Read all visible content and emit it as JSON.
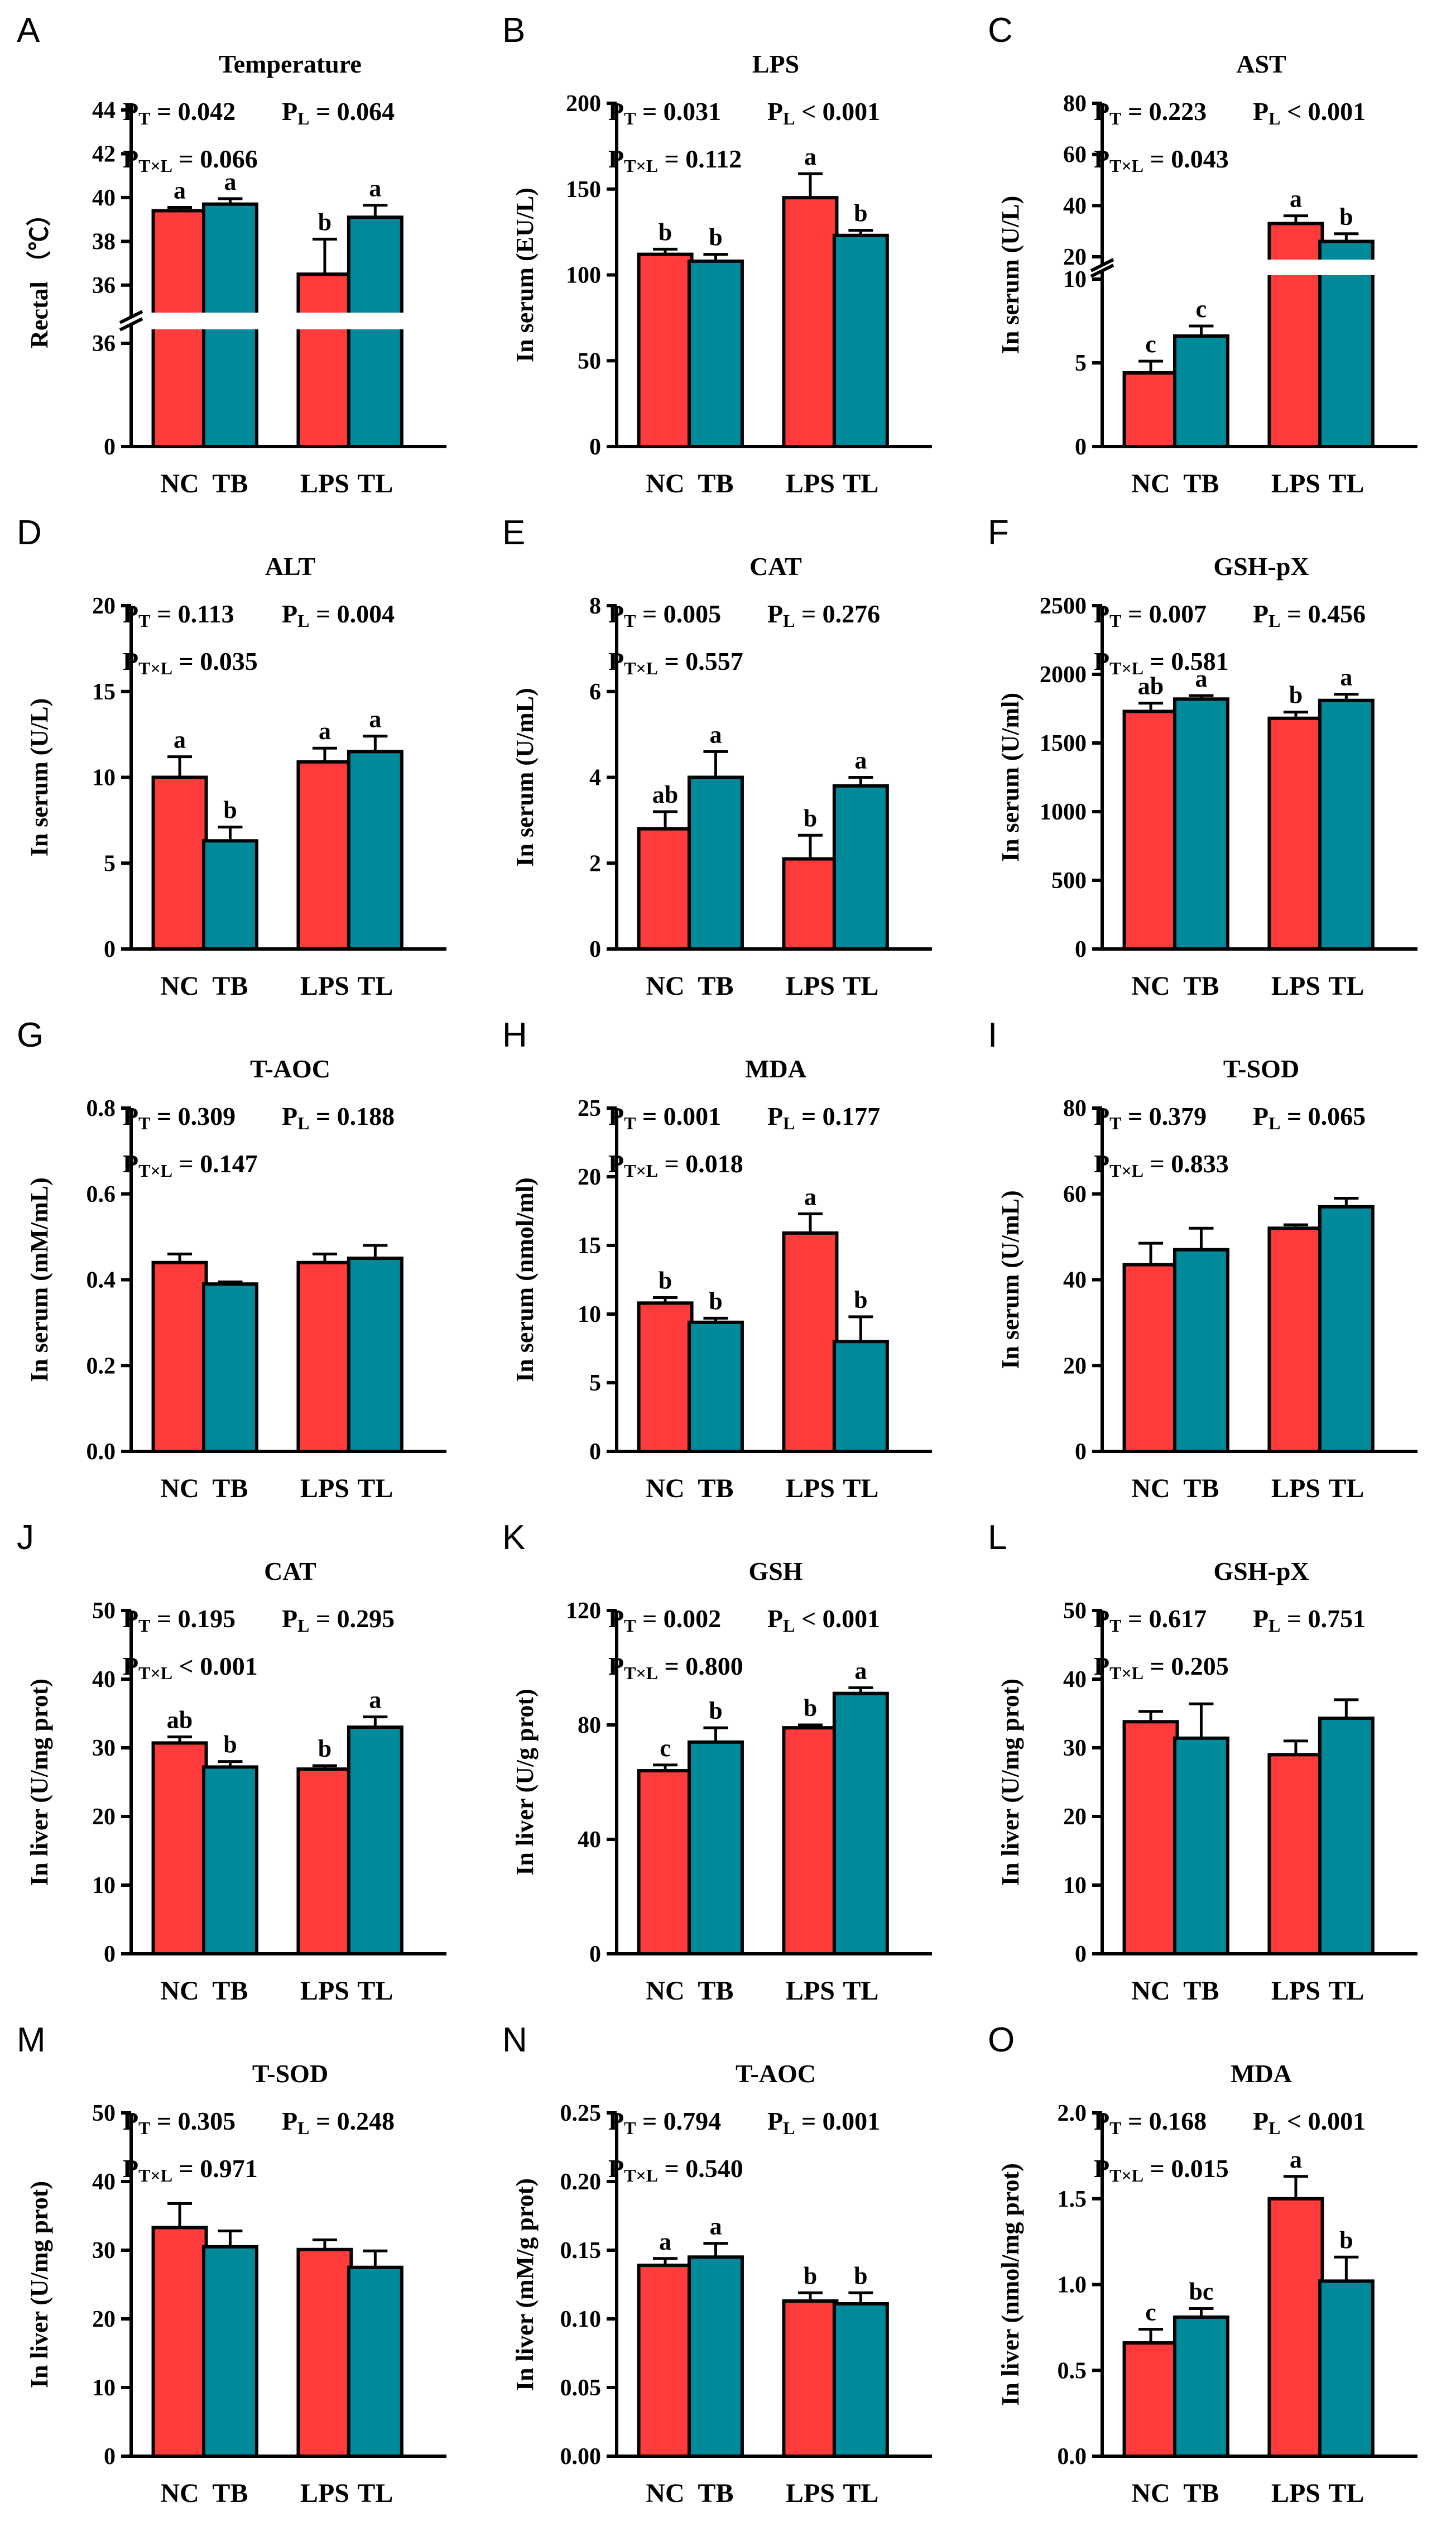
{
  "colors": {
    "red": "#ff3b3b",
    "teal": "#00899a",
    "ink": "#000000"
  },
  "chart_data": [
    {
      "panel": "A",
      "type": "bar",
      "title": "Temperature",
      "ylabel": "Rectal （℃）",
      "categories": [
        "NC",
        "TB",
        "LPS",
        "TL"
      ],
      "values": [
        39.4,
        39.7,
        36.5,
        39.1
      ],
      "errors": [
        0.15,
        0.25,
        1.6,
        0.55
      ],
      "sig": [
        "a",
        "a",
        "b",
        "a"
      ],
      "ylim": [
        35,
        44
      ],
      "yticks": [
        36,
        38,
        40,
        42,
        44
      ],
      "extra_ticks": [
        "36",
        "0"
      ],
      "broken_axis": true,
      "p_t": "0.042",
      "p_l": "0.064",
      "p_tl": "0.066",
      "p_l_op": "="
    },
    {
      "panel": "B",
      "type": "bar",
      "title": "LPS",
      "ylabel": "In serum (EU/L)",
      "categories": [
        "NC",
        "TB",
        "LPS",
        "TL"
      ],
      "values": [
        112,
        108,
        145,
        123
      ],
      "errors": [
        3,
        4,
        14,
        3
      ],
      "sig": [
        "b",
        "b",
        "a",
        "b"
      ],
      "ylim": [
        0,
        200
      ],
      "yticks": [
        0,
        50,
        100,
        150,
        200
      ],
      "yticklabels": [
        "0",
        "50",
        "100",
        "150",
        "200"
      ],
      "p_t": "0.031",
      "p_l": "0.001",
      "p_tl": "0.112",
      "p_l_op": "<"
    },
    {
      "panel": "C",
      "type": "bar",
      "title": "AST",
      "ylabel": "In serum (U/L)",
      "categories": [
        "NC",
        "TB",
        "LPS",
        "TL"
      ],
      "values": [
        4.4,
        6.6,
        33,
        26
      ],
      "errors": [
        0.7,
        0.6,
        3,
        3
      ],
      "sig": [
        "c",
        "c",
        "a",
        "b"
      ],
      "yticks_low": [
        0,
        5,
        10
      ],
      "yticks_high": [
        20,
        40,
        60,
        80
      ],
      "broken_axis": true,
      "p_t": "0.223",
      "p_l": "0.001",
      "p_tl": "0.043",
      "p_l_op": "<"
    },
    {
      "panel": "D",
      "type": "bar",
      "title": "ALT",
      "ylabel": "In serum (U/L)",
      "categories": [
        "NC",
        "TB",
        "LPS",
        "TL"
      ],
      "values": [
        10.0,
        6.3,
        10.9,
        11.5
      ],
      "errors": [
        1.2,
        0.8,
        0.8,
        0.9
      ],
      "sig": [
        "a",
        "b",
        "a",
        "a"
      ],
      "ylim": [
        0,
        20
      ],
      "yticks": [
        0,
        5,
        10,
        15,
        20
      ],
      "yticklabels": [
        "0",
        "5",
        "10",
        "15",
        "20"
      ],
      "p_t": "0.113",
      "p_l": "0.004",
      "p_tl": "0.035",
      "p_l_op": "="
    },
    {
      "panel": "E",
      "type": "bar",
      "title": "CAT",
      "ylabel": "In serum (U/mL)",
      "categories": [
        "NC",
        "TB",
        "LPS",
        "TL"
      ],
      "values": [
        2.8,
        4.0,
        2.1,
        3.8
      ],
      "errors": [
        0.4,
        0.6,
        0.55,
        0.2
      ],
      "sig": [
        "ab",
        "a",
        "b",
        "a"
      ],
      "ylim": [
        0,
        8
      ],
      "yticks": [
        0,
        2,
        4,
        6,
        8
      ],
      "yticklabels": [
        "0",
        "2",
        "4",
        "6",
        "8"
      ],
      "p_t": "0.005",
      "p_l": "0.276",
      "p_tl": "0.557",
      "p_l_op": "="
    },
    {
      "panel": "F",
      "type": "bar",
      "title": "GSH-pX",
      "ylabel": "In serum (U/ml)",
      "categories": [
        "NC",
        "TB",
        "LPS",
        "TL"
      ],
      "values": [
        1730,
        1820,
        1680,
        1810
      ],
      "errors": [
        60,
        25,
        45,
        45
      ],
      "sig": [
        "ab",
        "a",
        "b",
        "a"
      ],
      "ylim": [
        0,
        2500
      ],
      "yticks": [
        0,
        500,
        1000,
        1500,
        2000,
        2500
      ],
      "yticklabels": [
        "0",
        "500",
        "1000",
        "1500",
        "2000",
        "2500"
      ],
      "p_t": "0.007",
      "p_l": "0.456",
      "p_tl": "0.581",
      "p_l_op": "="
    },
    {
      "panel": "G",
      "type": "bar",
      "title": "T-AOC",
      "ylabel": "In serum (mM/mL)",
      "categories": [
        "NC",
        "TB",
        "LPS",
        "TL"
      ],
      "values": [
        0.44,
        0.39,
        0.44,
        0.45
      ],
      "errors": [
        0.02,
        0.005,
        0.02,
        0.03
      ],
      "sig": [
        "",
        "",
        "",
        ""
      ],
      "ylim": [
        0,
        0.8
      ],
      "yticks": [
        0,
        0.2,
        0.4,
        0.6,
        0.8
      ],
      "yticklabels": [
        "0.0",
        "0.2",
        "0.4",
        "0.6",
        "0.8"
      ],
      "p_t": "0.309",
      "p_l": "0.188",
      "p_tl": "0.147",
      "p_l_op": "="
    },
    {
      "panel": "H",
      "type": "bar",
      "title": "MDA",
      "ylabel": "In serum (nmol/ml)",
      "categories": [
        "NC",
        "TB",
        "LPS",
        "TL"
      ],
      "values": [
        10.8,
        9.4,
        15.9,
        8.0
      ],
      "errors": [
        0.4,
        0.3,
        1.4,
        1.8
      ],
      "sig": [
        "b",
        "b",
        "a",
        "b"
      ],
      "ylim": [
        0,
        25
      ],
      "yticks": [
        0,
        5,
        10,
        15,
        20,
        25
      ],
      "yticklabels": [
        "0",
        "5",
        "10",
        "15",
        "20",
        "25"
      ],
      "p_t": "0.001",
      "p_l": "0.177",
      "p_tl": "0.018",
      "p_l_op": "="
    },
    {
      "panel": "I",
      "type": "bar",
      "title": "T-SOD",
      "ylabel": "In serum (U/mL)",
      "categories": [
        "NC",
        "TB",
        "LPS",
        "TL"
      ],
      "values": [
        43.5,
        47,
        52,
        57
      ],
      "errors": [
        5,
        5,
        0.8,
        2
      ],
      "sig": [
        "",
        "",
        "",
        ""
      ],
      "ylim": [
        0,
        80
      ],
      "yticks": [
        0,
        20,
        40,
        60,
        80
      ],
      "yticklabels": [
        "0",
        "20",
        "40",
        "60",
        "80"
      ],
      "p_t": "0.379",
      "p_l": "0.065",
      "p_tl": "0.833",
      "p_l_op": "="
    },
    {
      "panel": "J",
      "type": "bar",
      "title": "CAT",
      "ylabel": "In liver (U/mg prot)",
      "categories": [
        "NC",
        "TB",
        "LPS",
        "TL"
      ],
      "values": [
        30.7,
        27.2,
        26.9,
        33
      ],
      "errors": [
        0.9,
        0.8,
        0.5,
        1.5
      ],
      "sig": [
        "ab",
        "b",
        "b",
        "a"
      ],
      "ylim": [
        0,
        50
      ],
      "yticks": [
        0,
        10,
        20,
        30,
        40,
        50
      ],
      "yticklabels": [
        "0",
        "10",
        "20",
        "30",
        "40",
        "50"
      ],
      "p_t": "0.195",
      "p_l": "0.295",
      "p_tl": "0.001",
      "p_l_op": "=",
      "p_tl_op": "<"
    },
    {
      "panel": "K",
      "type": "bar",
      "title": "GSH",
      "ylabel": "In liver (U/g prot)",
      "categories": [
        "NC",
        "TB",
        "LPS",
        "TL"
      ],
      "values": [
        64,
        74,
        79,
        91
      ],
      "errors": [
        2,
        5,
        1,
        2
      ],
      "sig": [
        "c",
        "b",
        "b",
        "a"
      ],
      "ylim": [
        0,
        120
      ],
      "yticks": [
        0,
        40,
        80,
        120
      ],
      "yticklabels": [
        "0",
        "40",
        "80",
        "120"
      ],
      "p_t": "0.002",
      "p_l": "0.001",
      "p_tl": "0.800",
      "p_l_op": "<"
    },
    {
      "panel": "L",
      "type": "bar",
      "title": "GSH-pX",
      "ylabel": "In liver (U/mg prot)",
      "categories": [
        "NC",
        "TB",
        "LPS",
        "TL"
      ],
      "values": [
        33.8,
        31.4,
        29,
        34.3
      ],
      "errors": [
        1.5,
        5,
        2,
        2.7
      ],
      "sig": [
        "",
        "",
        "",
        ""
      ],
      "ylim": [
        0,
        50
      ],
      "yticks": [
        0,
        10,
        20,
        30,
        40,
        50
      ],
      "yticklabels": [
        "0",
        "10",
        "20",
        "30",
        "40",
        "50"
      ],
      "p_t": "0.617",
      "p_l": "0.751",
      "p_tl": "0.205",
      "p_l_op": "="
    },
    {
      "panel": "M",
      "type": "bar",
      "title": "T-SOD",
      "ylabel": "In liver (U/mg prot)",
      "categories": [
        "NC",
        "TB",
        "LPS",
        "TL"
      ],
      "values": [
        33.3,
        30.5,
        30.1,
        27.5
      ],
      "errors": [
        3.5,
        2.3,
        1.4,
        2.4
      ],
      "sig": [
        "",
        "",
        "",
        ""
      ],
      "ylim": [
        0,
        50
      ],
      "yticks": [
        0,
        10,
        20,
        30,
        40,
        50
      ],
      "yticklabels": [
        "0",
        "10",
        "20",
        "30",
        "40",
        "50"
      ],
      "p_t": "0.305",
      "p_l": "0.248",
      "p_tl": "0.971",
      "p_l_op": "="
    },
    {
      "panel": "N",
      "type": "bar",
      "title": "T-AOC",
      "ylabel": "In liver (mM/g prot)",
      "categories": [
        "NC",
        "TB",
        "LPS",
        "TL"
      ],
      "values": [
        0.139,
        0.145,
        0.113,
        0.111
      ],
      "errors": [
        0.005,
        0.01,
        0.006,
        0.008
      ],
      "sig": [
        "a",
        "a",
        "b",
        "b"
      ],
      "ylim": [
        0,
        0.25
      ],
      "yticks": [
        0,
        0.05,
        0.1,
        0.15,
        0.2,
        0.25
      ],
      "yticklabels": [
        "0.00",
        "0.05",
        "0.10",
        "0.15",
        "0.20",
        "0.25"
      ],
      "p_t": "0.794",
      "p_l": "0.001",
      "p_tl": "0.540",
      "p_l_op": "="
    },
    {
      "panel": "O",
      "type": "bar",
      "title": "MDA",
      "ylabel": "In liver (nmol/mg prot)",
      "categories": [
        "NC",
        "TB",
        "LPS",
        "TL"
      ],
      "values": [
        0.66,
        0.81,
        1.5,
        1.02
      ],
      "errors": [
        0.08,
        0.05,
        0.13,
        0.14
      ],
      "sig": [
        "c",
        "bc",
        "a",
        "b"
      ],
      "ylim": [
        0,
        2.0
      ],
      "yticks": [
        0,
        0.5,
        1.0,
        1.5,
        2.0
      ],
      "yticklabels": [
        "0.0",
        "0.5",
        "1.0",
        "1.5",
        "2.0"
      ],
      "p_t": "0.168",
      "p_l": "0.001",
      "p_tl": "0.015",
      "p_l_op": "<"
    }
  ]
}
